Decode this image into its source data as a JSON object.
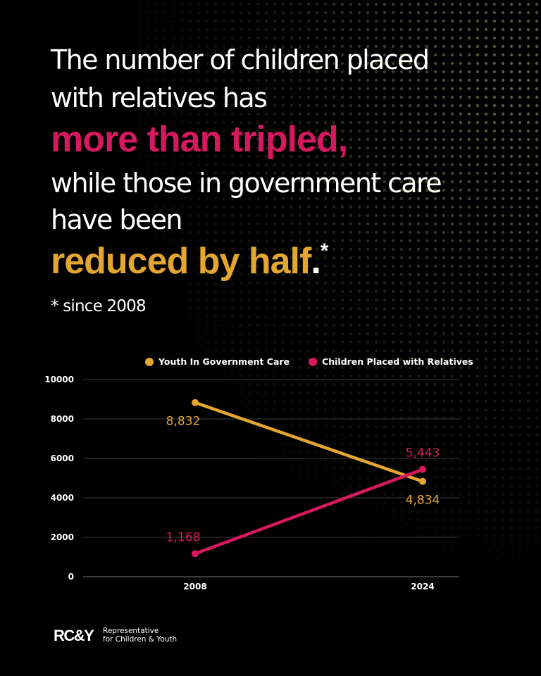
{
  "headline": {
    "lines_1": [
      "The number of children placed",
      "with relatives has"
    ],
    "highlight_1": "more than tripled,",
    "lines_2": [
      "while those in government care",
      "have been"
    ],
    "highlight_2": "reduced by half",
    "end_mark": ".",
    "asterisk": "*",
    "footnote": "* since 2008"
  },
  "chart_data": {
    "type": "line",
    "categories": [
      "2008",
      "2024"
    ],
    "series": [
      {
        "name": "Youth In Government Care",
        "color": "#e3a630",
        "values": [
          8832,
          4834
        ],
        "value_labels": [
          "8,832",
          "4,834"
        ]
      },
      {
        "name": "Children Placed with Relatives",
        "color": "#d6195f",
        "values": [
          1168,
          5443
        ],
        "value_labels": [
          "1,168",
          "5,443"
        ]
      }
    ],
    "ylim": [
      0,
      10000
    ],
    "yticks": [
      0,
      2000,
      4000,
      6000,
      8000,
      10000
    ],
    "grid": true,
    "legend": "top"
  },
  "logo": {
    "mark": "RC&Y",
    "line_1": "Representative",
    "line_2": "for Children & Youth"
  }
}
